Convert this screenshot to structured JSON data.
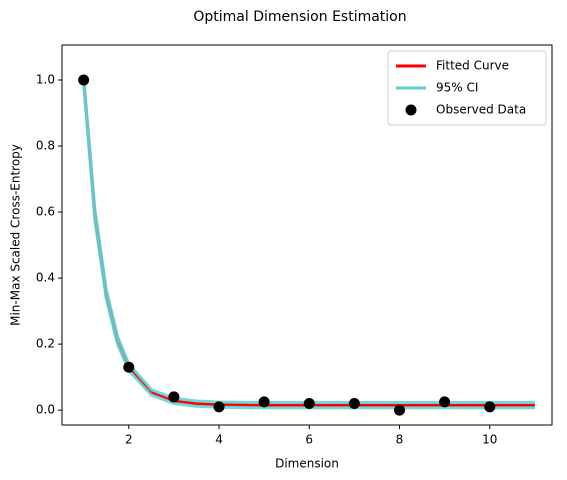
{
  "chart_data": {
    "type": "line",
    "title": "Optimal Dimension Estimation",
    "x_label": "Dimension",
    "y_label": "Min-Max Scaled Cross-Entropy",
    "xlim": [
      0.52,
      11.38
    ],
    "ylim": [
      -0.045,
      1.106
    ],
    "xticks": [
      2,
      4,
      6,
      8,
      10
    ],
    "yticks": [
      {
        "value": 0,
        "label": "0.0"
      },
      0.2,
      0.4,
      0.6,
      0.8,
      {
        "value": 1,
        "label": "1.0"
      }
    ],
    "grid": false,
    "legend": "upper right",
    "series": [
      {
        "name": "Fitted Curve",
        "color": "#ff0000",
        "style": "line",
        "x": [
          1,
          1.25,
          1.5,
          1.75,
          2,
          2.5,
          3,
          3.5,
          4,
          5,
          6,
          7,
          8,
          9,
          10,
          11
        ],
        "values": [
          1.0,
          0.591,
          0.352,
          0.212,
          0.13,
          0.054,
          0.028,
          0.0196,
          0.0166,
          0.015,
          0.015,
          0.015,
          0.015,
          0.015,
          0.015,
          0.015
        ]
      },
      {
        "name": "95% CI",
        "color": "#5fcfd0",
        "style": "band",
        "x": [
          1,
          1.25,
          1.5,
          1.75,
          2,
          2.5,
          3,
          3.5,
          4,
          5,
          6,
          7,
          8,
          9,
          10,
          11
        ],
        "values": [
          0.99,
          0.575,
          0.338,
          0.2,
          0.12,
          0.046,
          0.02,
          0.0116,
          0.0086,
          0.007,
          0.007,
          0.007,
          0.007,
          0.007,
          0.007,
          0.007
        ],
        "upper": [
          1.01,
          0.607,
          0.366,
          0.224,
          0.14,
          0.062,
          0.036,
          0.0276,
          0.0246,
          0.023,
          0.023,
          0.023,
          0.023,
          0.023,
          0.023,
          0.023
        ]
      },
      {
        "name": "Observed Data",
        "color": "#000000",
        "style": "points",
        "x": [
          1,
          2,
          3,
          4,
          5,
          6,
          7,
          8,
          9,
          10
        ],
        "values": [
          1.0,
          0.13,
          0.04,
          0.01,
          0.025,
          0.02,
          0.02,
          0.0,
          0.025,
          0.01
        ]
      }
    ]
  }
}
